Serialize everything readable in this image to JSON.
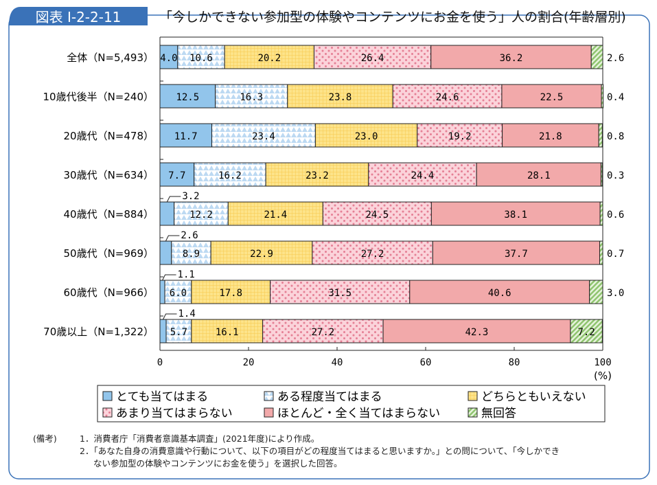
{
  "header": {
    "figure_no": "図表 I-2-2-11",
    "title": "「今しかできない参加型の体験やコンテンツにお金を使う」人の割合(年齢層別)"
  },
  "chart_data": {
    "type": "bar",
    "orientation": "horizontal",
    "stacked": true,
    "categories": [
      "全体（N=5,493）",
      "10歳代後半（N=240）",
      "20歳代（N=478）",
      "30歳代（N=634）",
      "40歳代（N=884）",
      "50歳代（N=969）",
      "60歳代（N=966）",
      "70歳以上（N=1,322）"
    ],
    "series": [
      {
        "name": "とても当てはまる",
        "color": "#92c5eb",
        "values": [
          4.0,
          12.5,
          11.7,
          7.7,
          3.2,
          2.6,
          1.1,
          1.4
        ]
      },
      {
        "name": "ある程度当てはまる",
        "color": "#d6e8f7",
        "values": [
          10.6,
          16.3,
          23.4,
          16.2,
          12.2,
          8.9,
          6.0,
          5.7
        ]
      },
      {
        "name": "どちらともいえない",
        "color": "#fde38a",
        "values": [
          20.2,
          23.8,
          23.0,
          23.2,
          21.4,
          22.9,
          17.8,
          16.1
        ]
      },
      {
        "name": "あまり当てはまらない",
        "color": "#f9c9d1",
        "values": [
          26.4,
          24.6,
          19.2,
          24.4,
          24.5,
          27.2,
          31.5,
          27.2
        ]
      },
      {
        "name": "ほとんど・全く当てはまらない",
        "color": "#f2a9aa",
        "values": [
          36.2,
          22.5,
          21.8,
          28.1,
          38.1,
          37.7,
          40.6,
          42.3
        ]
      },
      {
        "name": "無回答",
        "color": "#b5da9c",
        "values": [
          2.6,
          0.4,
          0.8,
          0.3,
          0.6,
          0.7,
          3.0,
          7.2
        ]
      }
    ],
    "xlim": [
      0,
      100
    ],
    "xticks": [
      "0",
      "20",
      "40",
      "60",
      "80",
      "100"
    ],
    "xunit": "(%)",
    "legend": "bottom"
  },
  "notes": {
    "label": "(備考)",
    "items": [
      "1．消費者庁「消費者意識基本調査」(2021年度)により作成。",
      "2．「あなた自身の消費意識や行動について、以下の項目がどの程度当てはまると思いますか。」との問について、「今しかでき",
      "ない参加型の体験やコンテンツにお金を使う」を選択した回答。"
    ]
  }
}
